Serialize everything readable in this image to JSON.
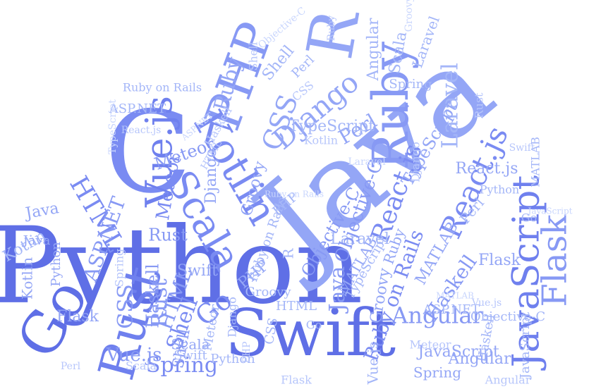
{
  "palette": [
    "#5f6fe6",
    "#6f80ee",
    "#7a8bf2",
    "#8799f4",
    "#94a6f6",
    "#a4b6f8",
    "#b7c6fb",
    "#c9d6fd"
  ],
  "words": [
    {
      "text": "Python"
    },
    {
      "text": "Java"
    },
    {
      "text": "Swift"
    },
    {
      "text": "C"
    },
    {
      "text": "PHP"
    },
    {
      "text": "R"
    },
    {
      "text": "Ruby"
    },
    {
      "text": "Go"
    },
    {
      "text": "Rust"
    },
    {
      "text": "Kotlin"
    },
    {
      "text": "Scala"
    },
    {
      "text": "Vue.js"
    },
    {
      "text": "JavaScript"
    },
    {
      "text": "React.js"
    },
    {
      "text": "Flask"
    },
    {
      "text": "Django"
    },
    {
      "text": "CSS"
    },
    {
      "text": "HTML"
    },
    {
      "text": "Laravel"
    },
    {
      "text": "Angular"
    },
    {
      "text": "Spring"
    },
    {
      "text": "Perl"
    },
    {
      "text": "Ruby on Rails"
    },
    {
      "text": "Haskell"
    },
    {
      "text": "TypeScript"
    },
    {
      "text": "Objective-C"
    },
    {
      "text": "Meteor"
    },
    {
      "text": "MATLAB"
    },
    {
      "text": "ASP.NET"
    },
    {
      "text": "Groovy"
    },
    {
      "text": "Shell"
    },
    {
      "text": "Go"
    },
    {
      "text": "Rust"
    },
    {
      "text": "Kotlin"
    },
    {
      "text": "Haskell"
    },
    {
      "text": "Flask"
    },
    {
      "text": "Python"
    },
    {
      "text": "Java"
    },
    {
      "text": "Shell"
    },
    {
      "text": "Scala"
    },
    {
      "text": "Spring"
    },
    {
      "text": "Angular"
    },
    {
      "text": "Perl"
    },
    {
      "text": "PHP"
    },
    {
      "text": "CSS"
    },
    {
      "text": "HTML"
    },
    {
      "text": "Meteor"
    },
    {
      "text": "Django"
    },
    {
      "text": "MATLAB"
    },
    {
      "text": "Ruby"
    },
    {
      "text": "React.js"
    },
    {
      "text": "Vue.js"
    },
    {
      "text": "Swift"
    },
    {
      "text": "Groovy"
    },
    {
      "text": "Laravel"
    },
    {
      "text": "TypeScript"
    },
    {
      "text": "Objective-C"
    },
    {
      "text": "ASP.NET"
    },
    {
      "text": "JavaScript"
    },
    {
      "text": "Ruby on Rails"
    },
    {
      "text": "Python"
    },
    {
      "text": "Rust"
    },
    {
      "text": "Java"
    },
    {
      "text": "Flask"
    },
    {
      "text": "Haskell"
    },
    {
      "text": "Go"
    },
    {
      "text": "Kotlin"
    },
    {
      "text": "Scala"
    },
    {
      "text": "Shell"
    },
    {
      "text": "Perl"
    },
    {
      "text": "Spring"
    },
    {
      "text": "Angular"
    },
    {
      "text": "Django"
    },
    {
      "text": "CSS"
    },
    {
      "text": "HTML"
    },
    {
      "text": "Meteor"
    },
    {
      "text": "PHP"
    },
    {
      "text": "Ruby"
    },
    {
      "text": "R"
    },
    {
      "text": "Swift"
    },
    {
      "text": "Vue.js"
    },
    {
      "text": "React.js"
    },
    {
      "text": "Groovy"
    },
    {
      "text": "Laravel"
    },
    {
      "text": "TypeScript"
    },
    {
      "text": "Objective-C"
    },
    {
      "text": "MATLAB"
    },
    {
      "text": "ASP.NET"
    },
    {
      "text": "JavaScript"
    },
    {
      "text": "Ruby on Rails"
    },
    {
      "text": "Python"
    },
    {
      "text": "Java"
    },
    {
      "text": "Go"
    },
    {
      "text": "Rust"
    },
    {
      "text": "Kotlin"
    },
    {
      "text": "Haskell"
    },
    {
      "text": "Flask"
    },
    {
      "text": "Scala"
    },
    {
      "text": "Shell"
    },
    {
      "text": "Spring"
    },
    {
      "text": "Angular"
    },
    {
      "text": "Perl"
    },
    {
      "text": "Django"
    },
    {
      "text": "CSS"
    },
    {
      "text": "HTML"
    },
    {
      "text": "Meteor"
    },
    {
      "text": "PHP"
    },
    {
      "text": "Ruby"
    },
    {
      "text": "Swift"
    },
    {
      "text": "Vue.js"
    },
    {
      "text": "React.js"
    },
    {
      "text": "Groovy"
    },
    {
      "text": "Laravel"
    },
    {
      "text": "TypeScript"
    },
    {
      "text": "Objective-C"
    },
    {
      "text": "MATLAB"
    },
    {
      "text": "ASP.NET"
    },
    {
      "text": "JavaScript"
    },
    {
      "text": "Ruby on Rails"
    }
  ]
}
